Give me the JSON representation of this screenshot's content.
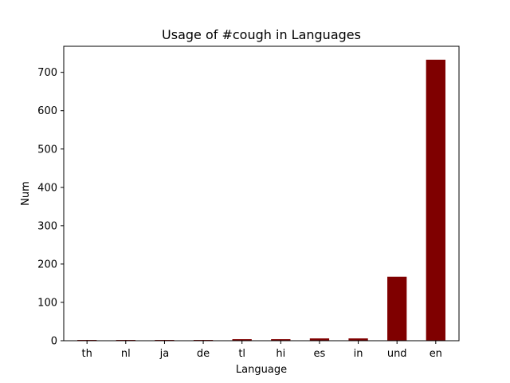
{
  "chart_data": {
    "type": "bar",
    "title": "Usage of #cough in Languages",
    "xlabel": "Language",
    "ylabel": "Num",
    "categories": [
      "th",
      "nl",
      "ja",
      "de",
      "tl",
      "hi",
      "es",
      "in",
      "und",
      "en"
    ],
    "values": [
      2,
      2,
      2,
      2,
      4,
      4,
      6,
      6,
      167,
      733
    ],
    "ylim": [
      0,
      768
    ],
    "yticks": [
      "0",
      "100",
      "200",
      "300",
      "400",
      "500",
      "600",
      "700"
    ],
    "bar_color": "#7f0000",
    "grid": false
  }
}
